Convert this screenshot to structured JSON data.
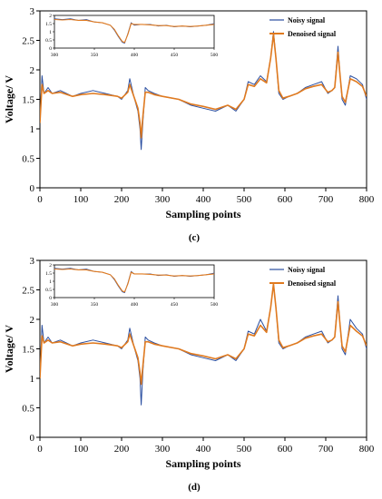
{
  "colors": {
    "noisy": "#2a4ea0",
    "denoised": "#e07a1f"
  },
  "chart_data": [
    {
      "type": "line",
      "panel_label": "(c)",
      "xlabel": "Sampling points",
      "ylabel": "Voltage/ V",
      "xlim": [
        0,
        800
      ],
      "ylim": [
        0,
        3
      ],
      "xticks": [
        "0",
        "100",
        "200",
        "300",
        "400",
        "500",
        "600",
        "700",
        "800"
      ],
      "yticks": [
        "0",
        "0.5",
        "1",
        "1.5",
        "2",
        "2.5",
        "3"
      ],
      "legend": {
        "position": "top-right",
        "entries": [
          "Noisy signal",
          "Denoised signal"
        ]
      },
      "series": [
        {
          "name": "Noisy signal",
          "x": [
            0,
            5,
            10,
            20,
            30,
            50,
            80,
            100,
            130,
            160,
            190,
            200,
            215,
            220,
            230,
            240,
            245,
            248,
            252,
            258,
            265,
            280,
            300,
            340,
            370,
            400,
            430,
            460,
            480,
            500,
            510,
            525,
            540,
            555,
            565,
            572,
            578,
            585,
            595,
            610,
            630,
            650,
            670,
            690,
            705,
            715,
            722,
            730,
            735,
            740,
            748,
            760,
            775,
            790,
            800
          ],
          "values": [
            1.1,
            1.9,
            1.6,
            1.7,
            1.6,
            1.65,
            1.55,
            1.6,
            1.65,
            1.6,
            1.55,
            1.5,
            1.65,
            1.85,
            1.55,
            1.3,
            1.0,
            0.65,
            1.1,
            1.7,
            1.65,
            1.6,
            1.55,
            1.5,
            1.4,
            1.35,
            1.3,
            1.4,
            1.3,
            1.5,
            1.8,
            1.75,
            1.9,
            1.8,
            2.2,
            2.65,
            2.2,
            1.6,
            1.5,
            1.55,
            1.6,
            1.7,
            1.75,
            1.8,
            1.6,
            1.65,
            1.7,
            2.4,
            1.9,
            1.5,
            1.4,
            1.9,
            1.85,
            1.75,
            1.5
          ]
        },
        {
          "name": "Denoised signal",
          "x": [
            0,
            5,
            10,
            20,
            30,
            50,
            80,
            100,
            130,
            160,
            190,
            200,
            215,
            220,
            230,
            240,
            245,
            248,
            252,
            258,
            265,
            280,
            300,
            340,
            370,
            400,
            430,
            460,
            480,
            500,
            510,
            525,
            540,
            555,
            565,
            572,
            578,
            585,
            595,
            610,
            630,
            650,
            670,
            690,
            705,
            715,
            722,
            730,
            735,
            740,
            748,
            760,
            775,
            790,
            800
          ],
          "values": [
            1.1,
            1.75,
            1.6,
            1.65,
            1.6,
            1.62,
            1.55,
            1.58,
            1.6,
            1.58,
            1.55,
            1.52,
            1.62,
            1.75,
            1.55,
            1.35,
            1.1,
            0.85,
            1.2,
            1.62,
            1.62,
            1.58,
            1.55,
            1.5,
            1.42,
            1.38,
            1.33,
            1.4,
            1.33,
            1.5,
            1.75,
            1.72,
            1.85,
            1.78,
            2.2,
            2.6,
            2.2,
            1.65,
            1.52,
            1.55,
            1.6,
            1.68,
            1.72,
            1.75,
            1.62,
            1.65,
            1.7,
            2.3,
            1.9,
            1.55,
            1.45,
            1.85,
            1.8,
            1.72,
            1.55
          ]
        }
      ],
      "inset": {
        "xlim": [
          300,
          500
        ],
        "ylim": [
          0,
          2
        ],
        "xticks": [
          "300",
          "350",
          "400",
          "450",
          "500"
        ],
        "yticks": [
          "0",
          "0.5",
          "1",
          "1.5",
          "2"
        ],
        "x": [
          300,
          310,
          320,
          330,
          340,
          350,
          360,
          370,
          375,
          380,
          385,
          388,
          392,
          396,
          400,
          410,
          420,
          430,
          440,
          450,
          460,
          470,
          480,
          490,
          500
        ],
        "noisy": [
          1.8,
          1.75,
          1.8,
          1.7,
          1.75,
          1.6,
          1.55,
          1.4,
          1.1,
          0.7,
          0.35,
          0.3,
          0.9,
          1.55,
          1.4,
          1.45,
          1.45,
          1.35,
          1.4,
          1.3,
          1.35,
          1.3,
          1.35,
          1.4,
          1.5
        ],
        "denoised": [
          1.75,
          1.72,
          1.75,
          1.7,
          1.7,
          1.6,
          1.55,
          1.4,
          1.15,
          0.75,
          0.4,
          0.35,
          0.85,
          1.5,
          1.45,
          1.45,
          1.42,
          1.38,
          1.38,
          1.32,
          1.35,
          1.32,
          1.35,
          1.4,
          1.45
        ]
      }
    },
    {
      "type": "line",
      "panel_label": "(d)",
      "xlabel": "Sampling points",
      "ylabel": "Voltage/ V",
      "xlim": [
        0,
        800
      ],
      "ylim": [
        0,
        3
      ],
      "xticks": [
        "0",
        "100",
        "200",
        "300",
        "400",
        "500",
        "600",
        "700",
        "800"
      ],
      "yticks": [
        "0",
        "0.5",
        "1",
        "1.5",
        "2",
        "2.5",
        "3"
      ],
      "legend": {
        "position": "top-right",
        "entries": [
          "Noisy signal",
          "Denoised signal"
        ]
      },
      "series": [
        {
          "name": "Noisy signal",
          "x": [
            0,
            5,
            10,
            20,
            30,
            50,
            80,
            100,
            130,
            160,
            190,
            200,
            215,
            220,
            230,
            240,
            245,
            248,
            252,
            258,
            265,
            280,
            300,
            340,
            370,
            400,
            430,
            460,
            480,
            500,
            510,
            525,
            540,
            555,
            565,
            572,
            578,
            585,
            595,
            610,
            630,
            650,
            670,
            690,
            705,
            715,
            722,
            730,
            735,
            740,
            748,
            760,
            775,
            790,
            800
          ],
          "values": [
            1.0,
            1.9,
            1.6,
            1.7,
            1.6,
            1.65,
            1.55,
            1.6,
            1.65,
            1.6,
            1.55,
            1.5,
            1.65,
            1.85,
            1.55,
            1.3,
            1.0,
            0.55,
            1.1,
            1.7,
            1.65,
            1.6,
            1.55,
            1.5,
            1.4,
            1.35,
            1.3,
            1.4,
            1.3,
            1.5,
            1.8,
            1.75,
            2.0,
            1.8,
            2.2,
            2.6,
            2.2,
            1.6,
            1.5,
            1.55,
            1.6,
            1.7,
            1.75,
            1.8,
            1.6,
            1.65,
            1.7,
            2.4,
            1.9,
            1.5,
            1.4,
            2.0,
            1.85,
            1.75,
            1.5
          ]
        },
        {
          "name": "Denoised signal",
          "x": [
            0,
            5,
            10,
            20,
            30,
            50,
            80,
            100,
            130,
            160,
            190,
            200,
            215,
            220,
            230,
            240,
            245,
            248,
            252,
            258,
            265,
            280,
            300,
            340,
            370,
            400,
            430,
            460,
            480,
            500,
            510,
            525,
            540,
            555,
            565,
            572,
            578,
            585,
            595,
            610,
            630,
            650,
            670,
            690,
            705,
            715,
            722,
            730,
            735,
            740,
            748,
            760,
            775,
            790,
            800
          ],
          "values": [
            1.0,
            1.72,
            1.6,
            1.65,
            1.6,
            1.62,
            1.55,
            1.58,
            1.6,
            1.58,
            1.55,
            1.52,
            1.62,
            1.75,
            1.55,
            1.35,
            1.1,
            0.9,
            1.2,
            1.62,
            1.62,
            1.58,
            1.55,
            1.5,
            1.42,
            1.38,
            1.33,
            1.4,
            1.33,
            1.5,
            1.75,
            1.72,
            1.9,
            1.78,
            2.2,
            2.6,
            2.2,
            1.65,
            1.52,
            1.55,
            1.6,
            1.68,
            1.72,
            1.75,
            1.62,
            1.65,
            1.7,
            2.3,
            1.9,
            1.55,
            1.45,
            1.9,
            1.8,
            1.72,
            1.55
          ]
        }
      ],
      "inset": {
        "xlim": [
          300,
          500
        ],
        "ylim": [
          0,
          2
        ],
        "xticks": [
          "300",
          "350",
          "400",
          "450",
          "500"
        ],
        "yticks": [
          "0",
          "0.5",
          "1",
          "1.5",
          "2"
        ],
        "x": [
          300,
          310,
          320,
          330,
          340,
          350,
          360,
          370,
          375,
          380,
          385,
          388,
          392,
          396,
          400,
          410,
          420,
          430,
          440,
          450,
          460,
          470,
          480,
          490,
          500
        ],
        "noisy": [
          1.8,
          1.75,
          1.8,
          1.7,
          1.75,
          1.6,
          1.55,
          1.4,
          1.1,
          0.7,
          0.35,
          0.3,
          0.9,
          1.6,
          1.45,
          1.45,
          1.45,
          1.35,
          1.4,
          1.3,
          1.35,
          1.3,
          1.35,
          1.4,
          1.5
        ],
        "denoised": [
          1.75,
          1.72,
          1.75,
          1.7,
          1.7,
          1.6,
          1.55,
          1.4,
          1.15,
          0.75,
          0.4,
          0.35,
          0.85,
          1.55,
          1.45,
          1.45,
          1.42,
          1.38,
          1.38,
          1.32,
          1.35,
          1.32,
          1.35,
          1.4,
          1.45
        ]
      }
    }
  ]
}
